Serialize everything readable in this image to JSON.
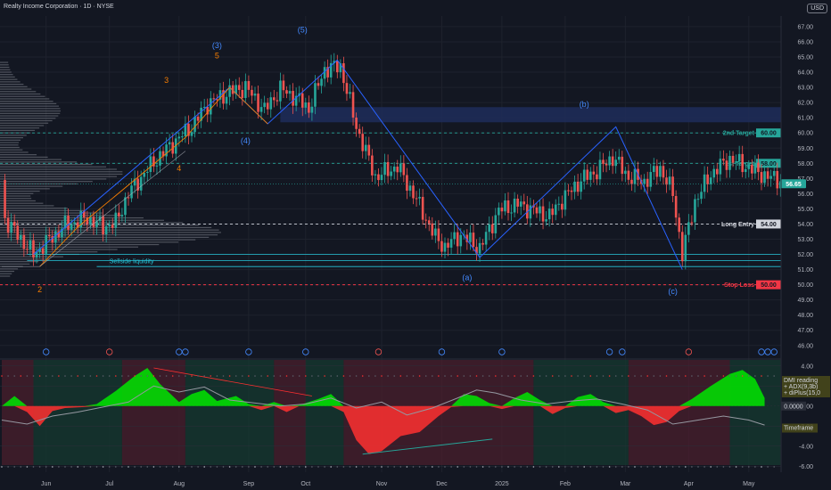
{
  "header": {
    "title": "Realty Income Corporation · 1D · NYSE",
    "currency": "USD"
  },
  "colors": {
    "up": "#26a69a",
    "down": "#ef5350",
    "blue": "#2962ff",
    "orange": "#f57c00",
    "target": "#26a69a",
    "stop": "#f23645",
    "zone": "#1e2d5a",
    "cyan": "#26c6da",
    "osc_pos": "#00e600",
    "osc_neg": "#ff3030",
    "adx": "#9598a1"
  },
  "chart_data": [
    {
      "type": "line",
      "title": "Realty Income Corporation · 1D · NYSE",
      "x_ticks": [
        "Jun",
        "Jul",
        "Aug",
        "Sep",
        "Oct",
        "Nov",
        "Dec",
        "2025",
        "Feb",
        "Mar",
        "Apr",
        "May"
      ],
      "y_ticks": [
        67,
        66,
        65,
        64,
        63,
        62,
        61,
        60,
        59,
        58,
        57,
        56,
        55,
        54,
        53,
        52,
        51,
        50,
        49,
        48,
        47,
        46
      ],
      "ylim": [
        45.4,
        67.7
      ],
      "price_path": [
        {
          "x": 1,
          "y": 54.3
        },
        {
          "x": 10,
          "y": 52.0
        },
        {
          "x": 20,
          "y": 53.9
        },
        {
          "x": 27,
          "y": 54.4
        },
        {
          "x": 32,
          "y": 53.8
        },
        {
          "x": 36,
          "y": 54.1
        },
        {
          "x": 40,
          "y": 56.0
        },
        {
          "x": 46,
          "y": 57.6
        },
        {
          "x": 50,
          "y": 58.5
        },
        {
          "x": 55,
          "y": 59.5
        },
        {
          "x": 60,
          "y": 60.4
        },
        {
          "x": 65,
          "y": 61.9
        },
        {
          "x": 72,
          "y": 62.7
        },
        {
          "x": 77,
          "y": 63.0
        },
        {
          "x": 83,
          "y": 61.5
        },
        {
          "x": 88,
          "y": 62.9
        },
        {
          "x": 93,
          "y": 62.3
        },
        {
          "x": 97,
          "y": 61.6
        },
        {
          "x": 102,
          "y": 64.2
        },
        {
          "x": 107,
          "y": 64.4
        },
        {
          "x": 112,
          "y": 60.4
        },
        {
          "x": 118,
          "y": 57.1
        },
        {
          "x": 125,
          "y": 57.8
        },
        {
          "x": 131,
          "y": 55.6
        },
        {
          "x": 137,
          "y": 53.1
        },
        {
          "x": 140,
          "y": 52.5
        },
        {
          "x": 145,
          "y": 53.3
        },
        {
          "x": 151,
          "y": 52.4
        },
        {
          "x": 157,
          "y": 54.9
        },
        {
          "x": 163,
          "y": 55.3
        },
        {
          "x": 168,
          "y": 54.9
        },
        {
          "x": 173,
          "y": 54.5
        },
        {
          "x": 177,
          "y": 55.6
        },
        {
          "x": 183,
          "y": 56.9
        },
        {
          "x": 188,
          "y": 57.5
        },
        {
          "x": 193,
          "y": 58.4
        },
        {
          "x": 198,
          "y": 57.1
        },
        {
          "x": 203,
          "y": 56.8
        },
        {
          "x": 208,
          "y": 57.7
        },
        {
          "x": 212,
          "y": 56.0
        },
        {
          "x": 215,
          "y": 52.0
        },
        {
          "x": 219,
          "y": 55.5
        },
        {
          "x": 224,
          "y": 57.3
        },
        {
          "x": 230,
          "y": 58.3
        },
        {
          "x": 236,
          "y": 57.7
        },
        {
          "x": 242,
          "y": 57.1
        },
        {
          "x": 246,
          "y": 56.9
        }
      ],
      "last_price": 56.65,
      "last_price_label": "56.65",
      "levels": [
        {
          "label": "2nd Target",
          "value": 60.0,
          "price_label": "60.00"
        },
        {
          "label": "1st Target",
          "value": 58.0,
          "price_label": "58.00"
        },
        {
          "label": "Long Entry",
          "value": 54.0,
          "price_label": "54.00"
        },
        {
          "label": "Stop Loss",
          "value": 50.0,
          "price_label": "50.00"
        }
      ],
      "sellside_label": "Sellside liquidity",
      "waves": [
        {
          "label": "2",
          "x": 12,
          "y": 49.5,
          "color": "orange"
        },
        {
          "label": "3",
          "x": 52,
          "y": 63.3,
          "color": "orange"
        },
        {
          "label": "4",
          "x": 56,
          "y": 57.5,
          "color": "orange"
        },
        {
          "label": "5",
          "x": 68,
          "y": 64.9,
          "color": "orange"
        },
        {
          "label": "(3)",
          "x": 68,
          "y": 65.6,
          "color": "blue"
        },
        {
          "label": "(4)",
          "x": 77,
          "y": 59.3,
          "color": "blue"
        },
        {
          "label": "(5)",
          "x": 95,
          "y": 66.6,
          "color": "blue"
        },
        {
          "label": "(a)",
          "x": 147,
          "y": 50.3,
          "color": "blue"
        },
        {
          "label": "(b)",
          "x": 184,
          "y": 61.7,
          "color": "blue"
        },
        {
          "label": "(c)",
          "x": 212,
          "y": 49.4,
          "color": "blue"
        }
      ]
    },
    {
      "type": "area",
      "title": "",
      "y_ticks": [
        4.0,
        2.0,
        0.0,
        -2.0,
        -4.0,
        -6.0
      ],
      "ylim": [
        -6.6,
        4.6
      ],
      "oscillator": [
        {
          "x": 0,
          "y": 0.0
        },
        {
          "x": 4,
          "y": 1.0
        },
        {
          "x": 8,
          "y": -0.6
        },
        {
          "x": 12,
          "y": -2.0
        },
        {
          "x": 16,
          "y": -0.5
        },
        {
          "x": 20,
          "y": -0.2
        },
        {
          "x": 26,
          "y": -0.1
        },
        {
          "x": 30,
          "y": 0.2
        },
        {
          "x": 36,
          "y": 1.5
        },
        {
          "x": 42,
          "y": 3.0
        },
        {
          "x": 46,
          "y": 3.8
        },
        {
          "x": 50,
          "y": 2.2
        },
        {
          "x": 56,
          "y": 0.4
        },
        {
          "x": 60,
          "y": 1.2
        },
        {
          "x": 64,
          "y": 1.6
        },
        {
          "x": 68,
          "y": 0.5
        },
        {
          "x": 74,
          "y": 1.0
        },
        {
          "x": 78,
          "y": 0.2
        },
        {
          "x": 82,
          "y": -0.4
        },
        {
          "x": 86,
          "y": 0.4
        },
        {
          "x": 90,
          "y": -0.6
        },
        {
          "x": 94,
          "y": 0.1
        },
        {
          "x": 100,
          "y": 0.7
        },
        {
          "x": 104,
          "y": 1.2
        },
        {
          "x": 108,
          "y": -0.6
        },
        {
          "x": 112,
          "y": -3.4
        },
        {
          "x": 116,
          "y": -4.8
        },
        {
          "x": 120,
          "y": -4.5
        },
        {
          "x": 126,
          "y": -3.0
        },
        {
          "x": 132,
          "y": -2.6
        },
        {
          "x": 138,
          "y": -1.0
        },
        {
          "x": 142,
          "y": -0.1
        },
        {
          "x": 146,
          "y": 1.2
        },
        {
          "x": 150,
          "y": 1.0
        },
        {
          "x": 154,
          "y": 0.3
        },
        {
          "x": 158,
          "y": -0.3
        },
        {
          "x": 162,
          "y": 0.8
        },
        {
          "x": 166,
          "y": 1.4
        },
        {
          "x": 170,
          "y": 0.6
        },
        {
          "x": 174,
          "y": -0.8
        },
        {
          "x": 178,
          "y": -0.2
        },
        {
          "x": 182,
          "y": 0.9
        },
        {
          "x": 186,
          "y": 1.2
        },
        {
          "x": 190,
          "y": 0.4
        },
        {
          "x": 194,
          "y": -0.7
        },
        {
          "x": 198,
          "y": -0.4
        },
        {
          "x": 202,
          "y": -1.0
        },
        {
          "x": 206,
          "y": -1.9
        },
        {
          "x": 210,
          "y": -1.6
        },
        {
          "x": 214,
          "y": -0.5
        },
        {
          "x": 218,
          "y": 0.7
        },
        {
          "x": 224,
          "y": 2.0
        },
        {
          "x": 230,
          "y": 3.2
        },
        {
          "x": 234,
          "y": 3.6
        },
        {
          "x": 238,
          "y": 2.7
        },
        {
          "x": 241,
          "y": 0.8
        }
      ],
      "adx": [
        {
          "x": 0,
          "y": -1.4
        },
        {
          "x": 8,
          "y": -1.8
        },
        {
          "x": 16,
          "y": -1.0
        },
        {
          "x": 24,
          "y": -0.6
        },
        {
          "x": 32,
          "y": -0.1
        },
        {
          "x": 40,
          "y": 0.4
        },
        {
          "x": 48,
          "y": 2.0
        },
        {
          "x": 56,
          "y": 1.4
        },
        {
          "x": 64,
          "y": 1.9
        },
        {
          "x": 72,
          "y": 0.6
        },
        {
          "x": 80,
          "y": 0.3
        },
        {
          "x": 88,
          "y": 0.0
        },
        {
          "x": 96,
          "y": 0.2
        },
        {
          "x": 104,
          "y": 0.8
        },
        {
          "x": 112,
          "y": -0.2
        },
        {
          "x": 120,
          "y": 0.4
        },
        {
          "x": 128,
          "y": -0.9
        },
        {
          "x": 136,
          "y": -0.2
        },
        {
          "x": 144,
          "y": 0.8
        },
        {
          "x": 150,
          "y": 1.6
        },
        {
          "x": 156,
          "y": 1.3
        },
        {
          "x": 164,
          "y": 0.6
        },
        {
          "x": 172,
          "y": 0.2
        },
        {
          "x": 180,
          "y": 0.5
        },
        {
          "x": 188,
          "y": 0.7
        },
        {
          "x": 196,
          "y": 0.2
        },
        {
          "x": 204,
          "y": -0.4
        },
        {
          "x": 212,
          "y": -1.8
        },
        {
          "x": 220,
          "y": -1.4
        },
        {
          "x": 228,
          "y": -1.0
        },
        {
          "x": 236,
          "y": -1.4
        },
        {
          "x": 241,
          "y": -1.9
        }
      ],
      "value_label": "0.0000",
      "legend": [
        "DMI reading",
        "+ ADX(9,3b)",
        "+ diPlus(15,0"
      ],
      "timeframe_label": "Timeframe"
    }
  ]
}
